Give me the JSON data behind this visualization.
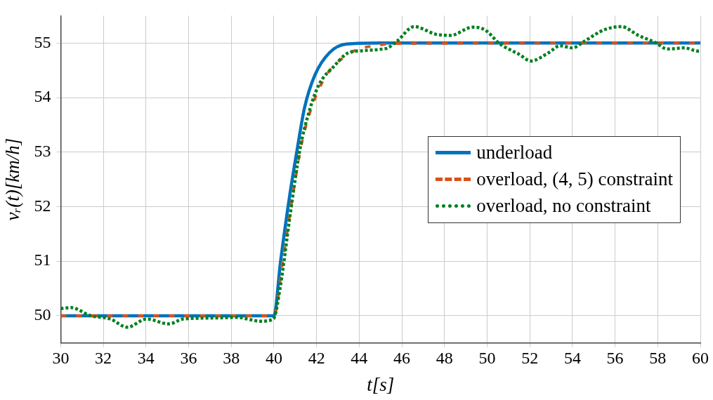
{
  "chart_data": {
    "type": "line",
    "xlabel": "t[s]",
    "ylabel": "vᵣ(t)[km/h]",
    "xlim": [
      30,
      60
    ],
    "xticks": [
      30,
      32,
      34,
      36,
      38,
      40,
      42,
      44,
      46,
      48,
      50,
      52,
      54,
      56,
      58,
      60
    ],
    "ylim": [
      49.5,
      55.5
    ],
    "yticks": [
      50,
      51,
      52,
      53,
      54,
      55
    ],
    "grid": true,
    "legend": "right",
    "marker": "none",
    "series": [
      {
        "name": "underload",
        "color": "#0072bd",
        "line_style": "solid",
        "x": [
          30,
          40,
          40.31,
          40.75,
          41.1,
          41.44,
          41.92,
          42.6,
          43.4,
          45,
          60
        ],
        "values": [
          50,
          50,
          50.99,
          52.23,
          53.07,
          53.82,
          54.41,
          54.82,
          54.98,
          55,
          55
        ]
      },
      {
        "name": "overload, (4, 5) constraint",
        "color": "#d95319",
        "line_style": "dashed",
        "x": [
          30,
          40,
          40.41,
          40.89,
          41.34,
          41.92,
          42.6,
          43.29,
          43.97,
          44.76,
          45.55,
          60
        ],
        "values": [
          50,
          50,
          51,
          52.23,
          53.23,
          53.98,
          54.49,
          54.74,
          54.89,
          54.95,
          54.99,
          55
        ]
      },
      {
        "name": "overload, no constraint",
        "color": "#008020",
        "line_style": "dotted",
        "x": [
          30,
          30.48,
          31.4,
          32.33,
          33.12,
          34.04,
          35.07,
          35.75,
          37.33,
          38.25,
          39.38,
          39.97,
          40.31,
          40.75,
          41.23,
          41.68,
          42.12,
          42.81,
          43.49,
          44.18,
          45.1,
          45.34,
          45.79,
          46.58,
          47.6,
          48.29,
          49.32,
          49.9,
          50.58,
          51.51,
          52.05,
          52.88,
          53.42,
          54,
          54.59,
          55.48,
          56.3,
          57.09,
          57.88,
          58.46,
          59.25,
          59.93,
          60
        ],
        "values": [
          50.13,
          50.15,
          50,
          49.94,
          49.79,
          49.94,
          49.85,
          49.94,
          49.96,
          49.97,
          49.9,
          49.94,
          50.56,
          51.82,
          53.07,
          53.78,
          54.24,
          54.57,
          54.82,
          54.86,
          54.89,
          54.91,
          55.04,
          55.3,
          55.16,
          55.14,
          55.29,
          55.24,
          54.99,
          54.79,
          54.67,
          54.82,
          54.95,
          54.91,
          55.04,
          55.24,
          55.3,
          55.14,
          55.01,
          54.89,
          54.91,
          54.85,
          54.85
        ]
      }
    ]
  }
}
